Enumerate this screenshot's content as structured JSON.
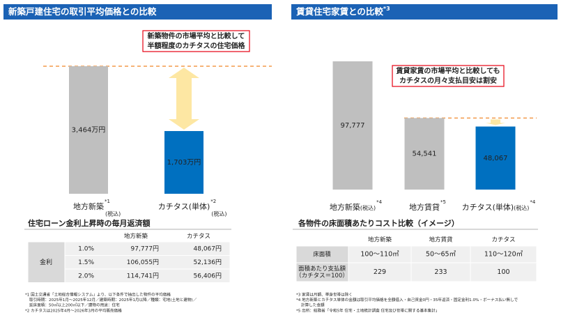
{
  "chart_data": [
    {
      "type": "bar",
      "title": "新築戸建住宅の取引平均価格との比較",
      "categories": [
        "地方新築",
        "カチタス(単体)"
      ],
      "category_notes": [
        {
          "mark": "*1",
          "suffix": "(税込)"
        },
        {
          "mark": "*2",
          "suffix": "(税込)"
        }
      ],
      "values": [
        3464,
        1703
      ],
      "value_labels": [
        "3,464万円",
        "1,703万円"
      ],
      "colors": [
        "#bfbfbf",
        "#0070c0"
      ],
      "annotation": [
        "新築物件の市場平均と比較して",
        "半額程度のカチタスの住宅価格"
      ]
    },
    {
      "type": "bar",
      "title": "賃貸住宅家賃との比較",
      "title_mark": "*3",
      "categories": [
        "地方新築",
        "地方賃貸",
        "カチタス(単体)"
      ],
      "category_notes": [
        {
          "mark": "*4",
          "suffix": "(税込)"
        },
        {
          "mark": "*5"
        },
        {
          "mark": "*4",
          "suffix": "(税込)"
        }
      ],
      "values": [
        97777,
        54541,
        48067
      ],
      "value_labels": [
        "97,777",
        "54,541",
        "48,067"
      ],
      "colors": [
        "#bfbfbf",
        "#bfbfbf",
        "#0070c0"
      ],
      "annotation": [
        "賃貸家賃の市場平均と比較しても",
        "カチタスの月々支払目安は割安"
      ]
    }
  ],
  "table_left": {
    "title": "住宅ローン金利上昇時の毎月返済額",
    "columns": [
      "地方新築",
      "カチタス"
    ],
    "row_header": "金利",
    "rows": [
      [
        "1.0%",
        "97,777円",
        "48,067円"
      ],
      [
        "1.5%",
        "106,055円",
        "52,136円"
      ],
      [
        "2.0%",
        "114,741円",
        "56,406円"
      ]
    ]
  },
  "table_right": {
    "title": "各物件の床面積あたりコスト比較（イメージ）",
    "columns": [
      "地方新築",
      "地方賃貸",
      "カチタス"
    ],
    "rows": [
      {
        "label": [
          "床面積"
        ],
        "cells": [
          "100～110㎡",
          "50～65㎡",
          "110～120㎡"
        ]
      },
      {
        "label": [
          "面積あたり支払額",
          "（カチタス＝100）"
        ],
        "cells": [
          229,
          233,
          100
        ]
      }
    ]
  },
  "footnotes_left": [
    "*1 国土交通省「土地総合情報システム」より、以下条件で抽出した物件の平均価格",
    "取引時期：2025年1月～2025年12月／建築時期：2025年1月以降／種類：宅地(土地と建物)／",
    "延床面積：50㎡以上200㎡以下／建物の用途：住宅",
    "*2 カチタスは2025年4月～2026年3月の平均販売価格"
  ],
  "footnotes_right": [
    "*3 家賃は月額、単身世帯は除く",
    "*4 地方新築とカチタス単体の金額は取引平均価格を全額借入・自己資金0円・35年返済・固定金利1.0%・ボーナス払い無しで",
    "計算した金額",
    "*5 出所：総務省「令和5年 住宅・土地統計調査 住宅及び世帯に関する基本集計」"
  ]
}
